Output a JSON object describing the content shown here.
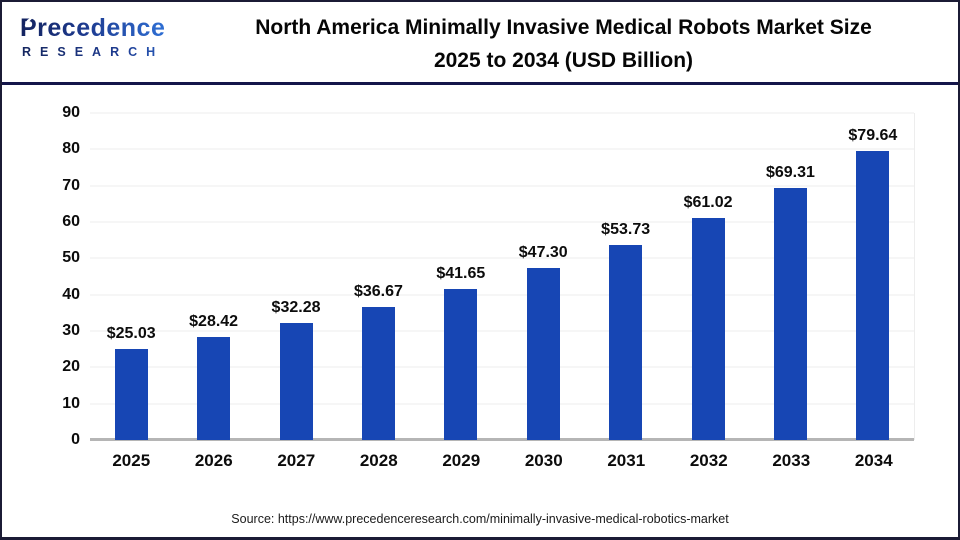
{
  "logo": {
    "name": "Precedence",
    "subname": "RESEARCH"
  },
  "header": {
    "title_line1": "North America Minimally Invasive Medical Robots Market Size",
    "title_line2": "2025 to 2034 (USD Billion)"
  },
  "footer": {
    "source": "Source: https://www.precedenceresearch.com/minimally-invasive-medical-robotics-market"
  },
  "colors": {
    "bar": "#1746b4",
    "gridline": "#ededed",
    "axis_baseline": "#b5b5b5",
    "header_divider": "#14154a",
    "logo_dark_blue": "#13235f",
    "logo_light_blue": "#2f6fd4",
    "title_text": "#060606"
  },
  "chart_data": {
    "type": "bar",
    "title": "North America Minimally Invasive Medical Robots Market Size 2025 to 2034 (USD Billion)",
    "categories": [
      "2025",
      "2026",
      "2027",
      "2028",
      "2029",
      "2030",
      "2031",
      "2032",
      "2033",
      "2034"
    ],
    "values": [
      25.03,
      28.42,
      32.28,
      36.67,
      41.65,
      47.3,
      53.73,
      61.02,
      69.31,
      79.64
    ],
    "value_labels": [
      "$25.03",
      "$28.42",
      "$32.28",
      "$36.67",
      "$41.65",
      "$47.30",
      "$53.73",
      "$61.02",
      "$69.31",
      "$79.64"
    ],
    "xlabel": "",
    "ylabel": "",
    "ylim": [
      0,
      90
    ],
    "yticks": [
      0,
      10,
      20,
      30,
      40,
      50,
      60,
      70,
      80,
      90
    ],
    "grid": "horizontal",
    "legend": "none",
    "bar_color": "#1746b4"
  }
}
